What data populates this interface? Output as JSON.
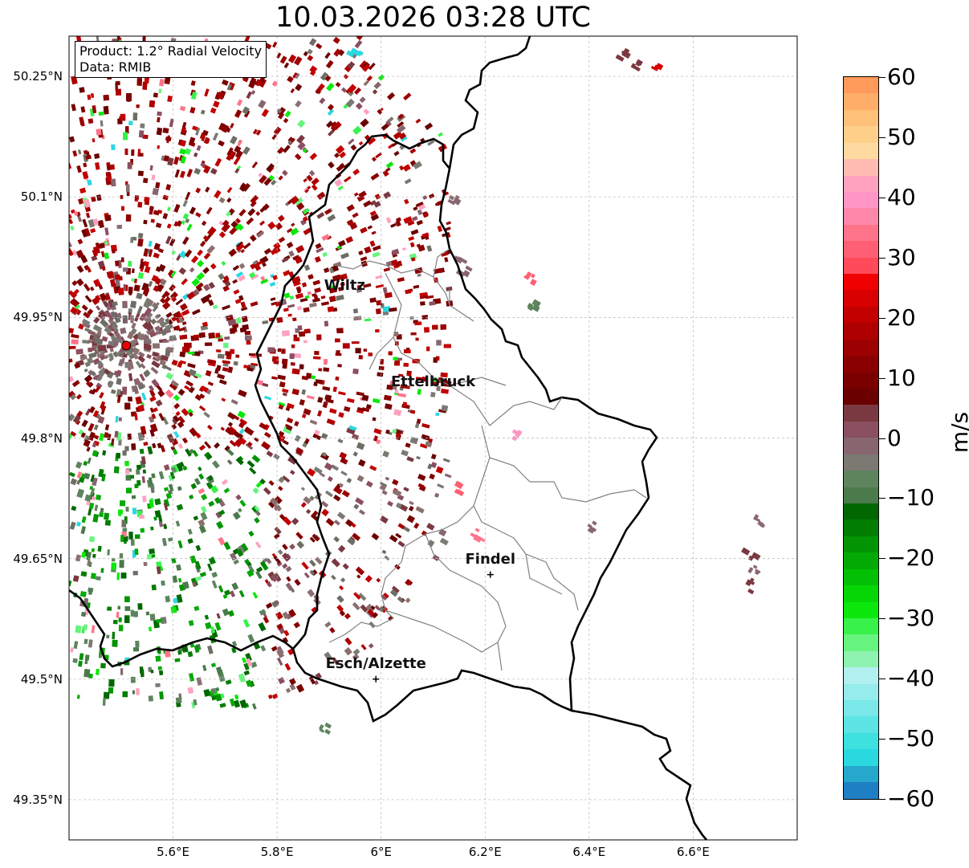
{
  "title": "10.03.2026 03:28 UTC",
  "info": {
    "product": "Product: 1.2° Radial Velocity",
    "data": "Data: RMIB"
  },
  "map_data": {
    "latitude_ticks": [
      {
        "value": 50.25,
        "label": "50.25°N"
      },
      {
        "value": 50.1,
        "label": "50.1°N"
      },
      {
        "value": 49.95,
        "label": "49.95°N"
      },
      {
        "value": 49.8,
        "label": "49.8°N"
      },
      {
        "value": 49.65,
        "label": "49.65°N"
      },
      {
        "value": 49.5,
        "label": "49.5°N"
      },
      {
        "value": 49.35,
        "label": "49.35°N"
      }
    ],
    "longitude_ticks": [
      {
        "value": 5.6,
        "label": "5.6°E"
      },
      {
        "value": 5.8,
        "label": "5.8°E"
      },
      {
        "value": 6.0,
        "label": "6°E"
      },
      {
        "value": 6.2,
        "label": "6.2°E"
      },
      {
        "value": 6.4,
        "label": "6.4°E"
      },
      {
        "value": 6.6,
        "label": "6.6°E"
      }
    ],
    "lon_range": [
      5.4,
      6.8
    ],
    "lat_range": [
      49.3,
      50.3
    ],
    "gridlines": true,
    "cities": [
      {
        "name": "Wiltz",
        "lon": 5.93,
        "lat": 49.97,
        "marker": false
      },
      {
        "name": "Ettelbruck",
        "lon": 6.1,
        "lat": 49.85,
        "marker": false
      },
      {
        "name": "Findel",
        "lon": 6.21,
        "lat": 49.63,
        "marker": true
      },
      {
        "name": "Esch/Alzette",
        "lon": 5.99,
        "lat": 49.5,
        "marker": true
      }
    ],
    "radar_site": {
      "lon": 5.51,
      "lat": 49.915,
      "color": "#ee0000"
    }
  },
  "colorbar": {
    "unit": "m/s",
    "vmin": -60,
    "vmax": 60,
    "ticks": [
      {
        "value": 60,
        "label": "60"
      },
      {
        "value": 50,
        "label": "50"
      },
      {
        "value": 40,
        "label": "40"
      },
      {
        "value": 30,
        "label": "30"
      },
      {
        "value": 20,
        "label": "20"
      },
      {
        "value": 10,
        "label": "10"
      },
      {
        "value": 0,
        "label": "0"
      },
      {
        "value": -10,
        "label": "−10"
      },
      {
        "value": -20,
        "label": "−20"
      },
      {
        "value": -30,
        "label": "−30"
      },
      {
        "value": -40,
        "label": "−40"
      },
      {
        "value": -50,
        "label": "−50"
      },
      {
        "value": -60,
        "label": "−60"
      }
    ],
    "colors": [
      "#1f7fc4",
      "#25a8cc",
      "#2ad8e0",
      "#3ee0e0",
      "#5ce4e4",
      "#7ae8e8",
      "#96ecec",
      "#b2f0f0",
      "#8ef2b0",
      "#66f47e",
      "#38f24a",
      "#0ce80c",
      "#06d606",
      "#04c004",
      "#04aa04",
      "#039403",
      "#027e02",
      "#016801",
      "#4b7a4b",
      "#5e845e",
      "#7a7a72",
      "#886670",
      "#8a5060",
      "#7a3840",
      "#6a0000",
      "#7a0000",
      "#8a0000",
      "#9c0000",
      "#ae0000",
      "#c20000",
      "#d80000",
      "#f00000",
      "#ff4a5a",
      "#ff5f73",
      "#ff748a",
      "#ff88aa",
      "#ff96c6",
      "#ffa2c0",
      "#ffbcb0",
      "#ffdaa0",
      "#ffd08a",
      "#ffc07a",
      "#ffae6a",
      "#ff9a5a"
    ]
  }
}
